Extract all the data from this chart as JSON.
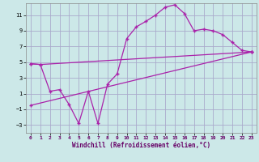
{
  "bg_color": "#cce8e8",
  "grid_color": "#aaaacc",
  "line_color": "#aa22aa",
  "xlabel": "Windchill (Refroidissement éolien,°C)",
  "xlim": [
    -0.5,
    23.5
  ],
  "ylim": [
    -4.0,
    12.5
  ],
  "xticks": [
    0,
    1,
    2,
    3,
    4,
    5,
    6,
    7,
    8,
    9,
    10,
    11,
    12,
    13,
    14,
    15,
    16,
    17,
    18,
    19,
    20,
    21,
    22,
    23
  ],
  "yticks": [
    -3,
    -1,
    1,
    3,
    5,
    7,
    9,
    11
  ],
  "line1_x": [
    0,
    1,
    23
  ],
  "line1_y": [
    4.8,
    4.7,
    6.3
  ],
  "line2_x": [
    0,
    23
  ],
  "line2_y": [
    -0.5,
    6.3
  ],
  "line3_x": [
    0,
    1,
    2,
    3,
    4,
    5,
    6,
    7,
    8,
    9,
    10,
    11,
    12,
    13,
    14,
    15,
    16,
    17,
    18,
    19,
    20,
    21,
    22,
    23
  ],
  "line3_y": [
    4.8,
    4.7,
    1.3,
    1.5,
    -0.4,
    -2.8,
    1.3,
    -2.8,
    2.2,
    3.5,
    8.0,
    9.5,
    10.2,
    11.0,
    12.0,
    12.3,
    11.2,
    9.0,
    9.2,
    9.0,
    8.5,
    7.5,
    6.5,
    6.3
  ]
}
